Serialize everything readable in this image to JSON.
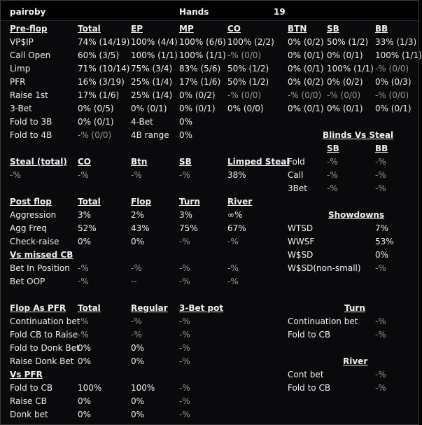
{
  "player": "pairoby",
  "hands_label": "Hands",
  "hands_count": "19",
  "preflop": {
    "headers": [
      "Pre-flop",
      "Total",
      "EP",
      "MP",
      "CO",
      "BTN",
      "SB",
      "BB"
    ],
    "rows": [
      [
        "VP$IP",
        "74% (14/19)",
        "100% (4/4)",
        "100% (6/6)",
        "100% (2/2)",
        "0% (0/2)",
        "50% (1/2)",
        "33% (1/3)"
      ],
      [
        "Call Open",
        "60% (3/5)",
        "100% (1/1)",
        "100% (1/1)",
        "-% (0/0)",
        "0% (0/1)",
        "0% (0/1)",
        "100% (1/1)"
      ],
      [
        "Limp",
        "71% (10/14)",
        "75% (3/4)",
        "83% (5/6)",
        "50% (1/2)",
        "0% (0/1)",
        "100% (1/1)",
        "-% (0/0)"
      ],
      [
        "PFR",
        "16% (3/19)",
        "25% (1/4)",
        "17% (1/6)",
        "50% (1/2)",
        "0% (0/2)",
        "0% (0/2)",
        "0% (0/3)"
      ],
      [
        "Raise 1st",
        "17% (1/6)",
        "25% (1/4)",
        "0% (0/2)",
        "-% (0/0)",
        "-% (0/0)",
        "-% (0/0)",
        "-% (0/0)"
      ],
      [
        "3-Bet",
        "0% (0/5)",
        "0% (0/1)",
        "0% (0/1)",
        "0% (0/0)",
        "0% (0/1)",
        "0% (0/1)",
        "0% (0/1)"
      ]
    ],
    "fold_to_3b_label": "Fold to 3B",
    "fold_to_3b_value": "0% (0/1)",
    "fourbet_label": "4-Bet",
    "fourbet_value": "0%",
    "fold_to_4b_label": "Fold to 4B",
    "fold_to_4b_value": "-% (0/0)",
    "fourbet_range_label": "4B range",
    "fourbet_range_value": "0%"
  },
  "blinds_vs_steal": {
    "title": "Blinds Vs Steal",
    "headers": [
      "SB",
      "BB"
    ],
    "rows": [
      [
        "Fold",
        "-%",
        "-%"
      ],
      [
        "Call",
        "-%",
        "-%"
      ],
      [
        "3Bet",
        "-%",
        "-%"
      ]
    ]
  },
  "steal": {
    "headers": [
      "Steal (total)",
      "CO",
      "Btn",
      "SB",
      "Limped Steal"
    ],
    "values": [
      "-%",
      "-%",
      "-%",
      "-%",
      "38%"
    ]
  },
  "postflop": {
    "headers": [
      "Post flop",
      "Total",
      "Flop",
      "Turn",
      "River"
    ],
    "rows": [
      [
        "Aggression",
        "3%",
        "2%",
        "3%",
        "∞%"
      ],
      [
        "Agg Freq",
        "52%",
        "43%",
        "75%",
        "67%"
      ],
      [
        "Check-raise",
        "0%",
        "0%",
        "-%",
        "-%"
      ]
    ],
    "missed_cb_title": "Vs missed CB",
    "missed_rows": [
      [
        "Bet In Position",
        "-%",
        "-%",
        "-%",
        "-%"
      ],
      [
        "Bet OOP",
        "-%",
        "--",
        "-%",
        "-%"
      ]
    ]
  },
  "showdowns": {
    "title": "Showdowns",
    "rows": [
      [
        "WTSD",
        "7%"
      ],
      [
        "WWSF",
        "53%"
      ],
      [
        "W$SD",
        "0%"
      ],
      [
        "W$SD(non-small)",
        "-%"
      ]
    ]
  },
  "flop_as_pfr": {
    "headers": [
      "Flop As PFR",
      "Total",
      "Regular",
      "3-Bet pot"
    ],
    "rows": [
      [
        "Continuation bet",
        "-%",
        "-%",
        "-%"
      ],
      [
        "Fold CB to Raise",
        "-%",
        "-%",
        "-%"
      ],
      [
        "Fold to Donk Bet",
        "0%",
        "0%",
        "-%"
      ],
      [
        "Raise Donk Bet",
        "0%",
        "0%",
        "-%"
      ]
    ]
  },
  "vs_pfr": {
    "title": "Vs PFR",
    "rows": [
      [
        "Fold to CB",
        "100%",
        "100%",
        "-%"
      ],
      [
        "Raise CB",
        "0%",
        "0%",
        "-%"
      ],
      [
        "Donk bet",
        "0%",
        "0%",
        "-%"
      ]
    ]
  },
  "turn": {
    "title": "Turn",
    "rows": [
      [
        "Continuation bet",
        "-%"
      ],
      [
        "Fold to CB",
        "-%"
      ]
    ]
  },
  "river": {
    "title": "River",
    "rows": [
      [
        "Cont bet",
        "-%"
      ],
      [
        "Fold to CB",
        "-%"
      ]
    ]
  }
}
